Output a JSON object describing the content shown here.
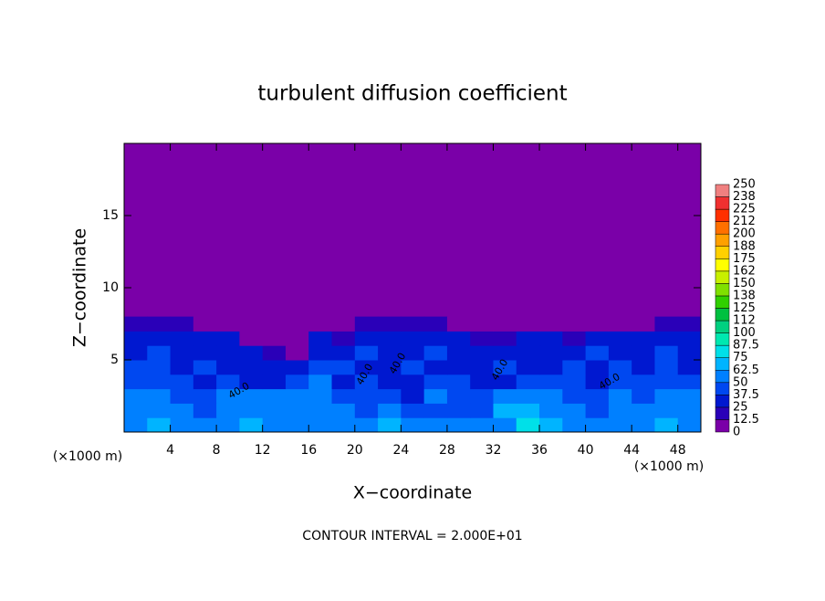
{
  "chart_data": {
    "type": "heatmap",
    "title": "turbulent diffusion coefficient",
    "x_label": "X−coordinate",
    "y_label": "Z−coordinate",
    "x_unit_label": "(×1000 m)",
    "y_unit_label": "(×1000 m)",
    "footer": "CONTOUR INTERVAL = 2.000E+01",
    "xlim": [
      0,
      50
    ],
    "xticks": [
      4,
      8,
      12,
      16,
      20,
      24,
      28,
      32,
      36,
      40,
      44,
      48
    ],
    "ylim": [
      0,
      20
    ],
    "yticks": [
      5,
      10,
      15
    ],
    "x": [
      1,
      3,
      5,
      7,
      9,
      11,
      13,
      15,
      17,
      19,
      21,
      23,
      25,
      27,
      29,
      31,
      33,
      35,
      37,
      39,
      41,
      43,
      45,
      47,
      49
    ],
    "z": [
      0.5,
      1.5,
      2.5,
      3.5,
      4.5,
      5.5,
      6.5,
      7.5
    ],
    "values": [
      [
        60,
        70,
        55,
        50,
        60,
        65,
        60,
        55,
        60,
        55,
        60,
        65,
        55,
        50,
        55,
        50,
        60,
        85,
        65,
        55,
        50,
        55,
        60,
        65,
        60
      ],
      [
        55,
        60,
        50,
        45,
        55,
        60,
        55,
        60,
        55,
        50,
        45,
        55,
        40,
        45,
        40,
        45,
        65,
        70,
        60,
        50,
        45,
        50,
        55,
        60,
        55
      ],
      [
        50,
        55,
        45,
        40,
        50,
        55,
        50,
        55,
        60,
        45,
        40,
        40,
        35,
        50,
        45,
        40,
        55,
        60,
        50,
        40,
        45,
        50,
        45,
        55,
        50
      ],
      [
        45,
        40,
        45,
        35,
        40,
        30,
        35,
        40,
        55,
        35,
        40,
        30,
        35,
        40,
        45,
        30,
        35,
        40,
        45,
        40,
        35,
        40,
        45,
        40,
        40
      ],
      [
        40,
        45,
        35,
        40,
        30,
        35,
        30,
        25,
        45,
        40,
        35,
        35,
        40,
        35,
        30,
        35,
        40,
        30,
        35,
        40,
        30,
        40,
        35,
        45,
        35
      ],
      [
        35,
        40,
        35,
        30,
        35,
        30,
        15,
        10,
        35,
        30,
        40,
        30,
        35,
        40,
        30,
        30,
        35,
        35,
        30,
        35,
        40,
        35,
        30,
        40,
        35
      ],
      [
        30,
        30,
        30,
        30,
        25,
        10,
        0,
        0,
        30,
        15,
        30,
        30,
        30,
        30,
        30,
        20,
        20,
        25,
        25,
        20,
        25,
        30,
        30,
        30,
        30
      ],
      [
        20,
        20,
        20,
        10,
        5,
        0,
        0,
        0,
        10,
        0,
        15,
        20,
        20,
        15,
        5,
        0,
        0,
        0,
        0,
        0,
        0,
        10,
        0,
        15,
        20
      ]
    ],
    "contour_labels": [
      {
        "value": 40,
        "label": "40.0"
      },
      {
        "value": 40,
        "label": "40.0"
      },
      {
        "value": 40,
        "label": "40.0"
      },
      {
        "value": 40,
        "label": "40.0"
      },
      {
        "value": 40,
        "label": "40.0"
      }
    ],
    "colorbar": {
      "levels": [
        0,
        12.5,
        25,
        37.5,
        50,
        62.5,
        75,
        87.5,
        100,
        {
          "value": 112.5,
          "label": "112"
        },
        125,
        {
          "value": 137.5,
          "label": "138"
        },
        150,
        {
          "value": 162.5,
          "label": "162"
        },
        175,
        {
          "value": 187.5,
          "label": "188"
        },
        200,
        {
          "value": 212.5,
          "label": "212"
        },
        225,
        {
          "value": 237.5,
          "label": "238"
        },
        250
      ],
      "colors": [
        "#7a00a8",
        "#2a00b8",
        "#0018d0",
        "#0048f0",
        "#0080ff",
        "#00b4ff",
        "#00e0e8",
        "#00e8b0",
        "#00d080",
        "#00c040",
        "#30d000",
        "#80e000",
        "#c8f000",
        "#ffff00",
        "#ffd000",
        "#ffa000",
        "#ff7000",
        "#ff3000",
        "#f03030",
        "#f08080"
      ]
    }
  }
}
